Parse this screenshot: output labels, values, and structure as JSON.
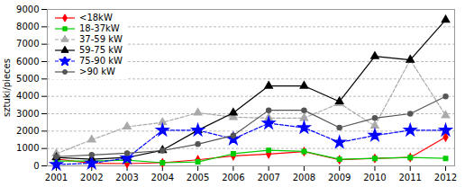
{
  "chart_data": {
    "type": "line",
    "x": [
      2001,
      2002,
      2003,
      2004,
      2005,
      2006,
      2007,
      2008,
      2009,
      2010,
      2011,
      2012
    ],
    "xlim": [
      2001,
      2012
    ],
    "xticks": [
      2001,
      2002,
      2003,
      2004,
      2005,
      2006,
      2007,
      2008,
      2009,
      2010,
      2011,
      2012
    ],
    "ylabel": "sztuki/pieces",
    "ylim": [
      0,
      9000
    ],
    "yticks": [
      0,
      1000,
      2000,
      3000,
      4000,
      5000,
      6000,
      7000,
      8000,
      9000
    ],
    "grid": true,
    "legend": "upper left",
    "series": [
      {
        "name": "<18kW",
        "color": "#ff0000",
        "marker": "diamond",
        "line_style": "solid",
        "values": [
          400,
          150,
          130,
          180,
          350,
          580,
          680,
          820,
          350,
          430,
          480,
          1650
        ]
      },
      {
        "name": "18-37kW",
        "color": "#00cc00",
        "marker": "square",
        "line_style": "solid",
        "values": [
          280,
          280,
          330,
          180,
          230,
          700,
          900,
          830,
          380,
          430,
          480,
          430
        ]
      },
      {
        "name": "37-59 kW",
        "color": "#aaaaaa",
        "marker": "triangle",
        "line_style": "dashed",
        "values": [
          700,
          1500,
          2250,
          2500,
          3050,
          2800,
          2750,
          2750,
          3600,
          2300,
          6100,
          2900
        ]
      },
      {
        "name": "59-75 kW",
        "color": "#000000",
        "marker": "triangle",
        "line_style": "solid",
        "values": [
          480,
          380,
          480,
          900,
          2050,
          3050,
          4600,
          4600,
          3700,
          6300,
          6100,
          8400
        ]
      },
      {
        "name": "75-90 kW",
        "color": "#0000ff",
        "marker": "star",
        "line_style": "dashed",
        "values": [
          80,
          150,
          450,
          2050,
          2050,
          1550,
          2450,
          2200,
          1350,
          1750,
          2050,
          2050
        ]
      },
      {
        "name": ">90 kW",
        "color": "#555555",
        "marker": "circle",
        "line_style": "solid",
        "values": [
          530,
          630,
          730,
          880,
          1250,
          1750,
          3200,
          3200,
          2200,
          2750,
          3000,
          4000
        ]
      }
    ]
  }
}
